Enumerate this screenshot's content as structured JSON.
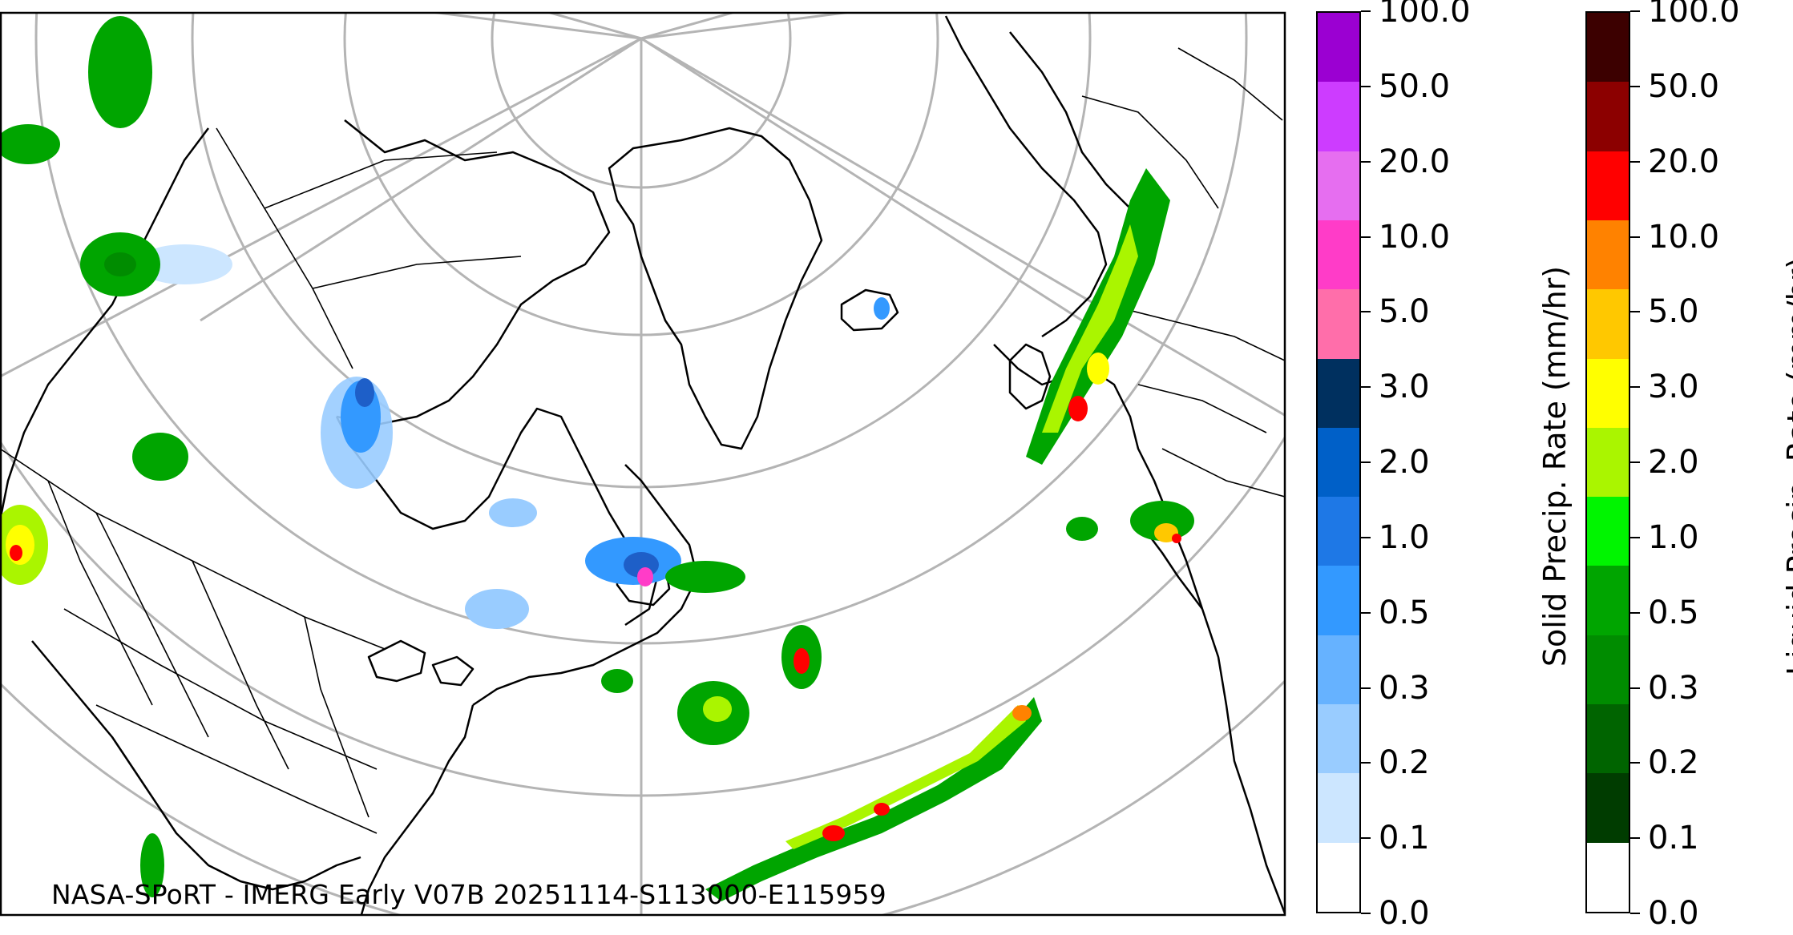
{
  "credit": "NASA-SPoRT - IMERG Early V07B 20251114-S113000-E115959",
  "solid_bar": {
    "label": "Solid Precip. Rate (mm/hr)",
    "ticks": [
      "0.0",
      "0.1",
      "0.2",
      "0.3",
      "0.5",
      "1.0",
      "2.0",
      "3.0",
      "5.0",
      "10.0",
      "20.0",
      "50.0",
      "100.0"
    ],
    "colors": [
      "#ffffff",
      "#cce6ff",
      "#99ccff",
      "#66b2ff",
      "#3399ff",
      "#1e78e6",
      "#0060c8",
      "#00305f",
      "#ff6eaa",
      "#ff3cc8",
      "#e66ef0",
      "#cd3cff",
      "#9b00d2"
    ]
  },
  "liquid_bar": {
    "label": "Liquid Precip. Rate (mm/hr)",
    "ticks": [
      "0.0",
      "0.1",
      "0.2",
      "0.3",
      "0.5",
      "1.0",
      "2.0",
      "3.0",
      "5.0",
      "10.0",
      "20.0",
      "50.0",
      "100.0"
    ],
    "colors": [
      "#ffffff",
      "#003c00",
      "#006400",
      "#008c00",
      "#00a500",
      "#00f500",
      "#aaf500",
      "#ffff00",
      "#ffc800",
      "#ff8200",
      "#ff0000",
      "#8c0000",
      "#3c0000"
    ]
  },
  "map_colors": {
    "graticule": "#b4b4b4",
    "coastline": "#000000",
    "snow_light": "#99ccff",
    "snow_mid": "#3399ff",
    "snow_heavy": "#1e5fc8",
    "snow_pink": "#ff3cc8",
    "rain_green": "#00a500",
    "rain_lime": "#aaf500",
    "rain_yellow": "#ffff00",
    "rain_orange": "#ff8200",
    "rain_red": "#ff0000"
  }
}
